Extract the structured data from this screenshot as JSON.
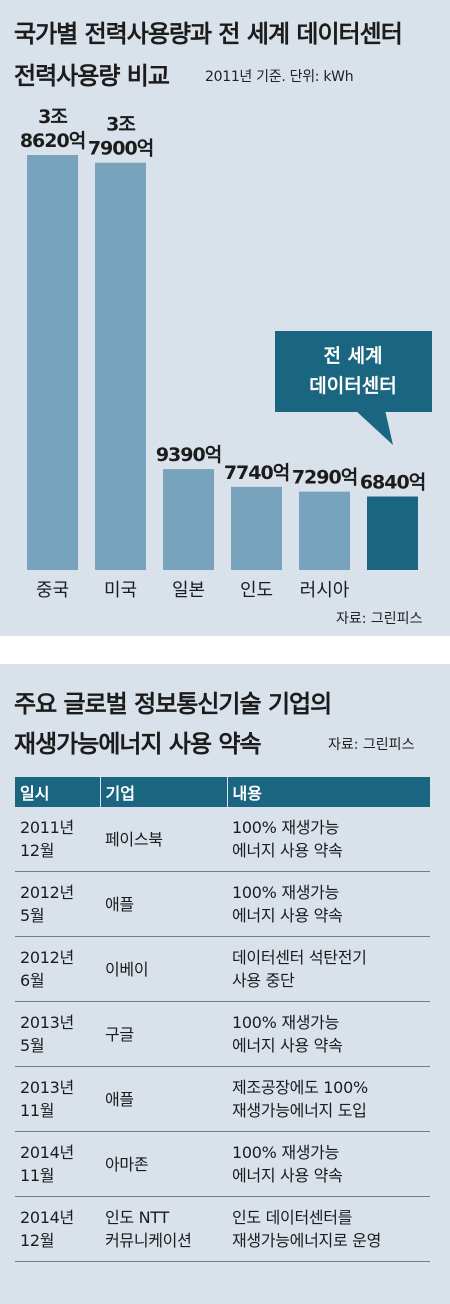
{
  "chart_data": {
    "type": "bar",
    "title": "국가별 전력사용량과 전 세계 데이터센터 전력사용량 비교",
    "title_line1": "국가별 전력사용량과 전 세계 데이터센터",
    "title_line2": "전력사용량 비교",
    "subtitle": "2011년 기준. 단위: kWh",
    "categories": [
      "중국",
      "미국",
      "일본",
      "인도",
      "러시아",
      ""
    ],
    "values": [
      38620,
      37900,
      9390,
      7740,
      7290,
      6840
    ],
    "value_labels": [
      [
        "3조",
        "8620억"
      ],
      [
        "3조",
        "7900억"
      ],
      [
        "9390억"
      ],
      [
        "7740억"
      ],
      [
        "7290억"
      ],
      [
        "6840억"
      ]
    ],
    "highlight": {
      "index": 5,
      "callout_lines": [
        "전 세계",
        "데이터센터"
      ]
    },
    "colors": {
      "bar": "#78a3bd",
      "highlight": "#1a6680",
      "callout": "#1a6680",
      "background": "#d9e1ea"
    },
    "source": "자료: 그린피스"
  },
  "table": {
    "title_line1": "주요 글로벌 정보통신기술 기업의",
    "title_line2": "재생가능에너지 사용 약속",
    "source": "자료: 그린피스",
    "headers": [
      "일시",
      "기업",
      "내용"
    ],
    "rows": [
      [
        "2011년\n12월",
        "페이스북",
        "100% 재생가능\n에너지 사용 약속"
      ],
      [
        "2012년\n5월",
        "애플",
        "100% 재생가능\n에너지 사용 약속"
      ],
      [
        "2012년\n6월",
        "이베이",
        "데이터센터 석탄전기\n사용 중단"
      ],
      [
        "2013년\n5월",
        "구글",
        "100% 재생가능\n에너지 사용 약속"
      ],
      [
        "2013년\n11월",
        "애플",
        "제조공장에도 100%\n재생가능에너지 도입"
      ],
      [
        "2014년\n11월",
        "아마존",
        "100% 재생가능\n에너지 사용 약속"
      ],
      [
        "2014년\n12월",
        "인도 NTT\n커뮤니케이션",
        "인도 데이터센터를\n재생가능에너지로 운영"
      ]
    ]
  }
}
